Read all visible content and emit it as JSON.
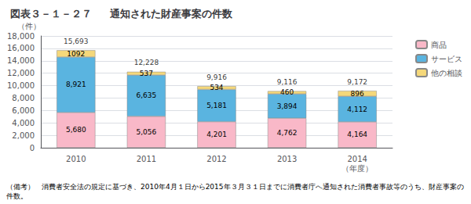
{
  "chart_data": {
    "type": "bar",
    "title": "図表３－１－２７",
    "subtitle": "通知された財産事案の件数",
    "ylabel": "（件）",
    "annotations": [
      "（備考）　消費者安全法の規定に基づき、2010年4月１日から2015年３月３１日までに消費者庁へ通知された消費者事故等のうち、財産事案の件数。"
    ],
    "categories": [
      "2010",
      "2011",
      "2012",
      "2013",
      "2014\n（年度）"
    ],
    "series": [
      {
        "name": "商品",
        "color": "#f9b8c8",
        "values": [
          5680,
          5056,
          4201,
          4762,
          4164
        ],
        "value_labels": [
          "5,680",
          "5,056",
          "4,201",
          "4,762",
          "4,164"
        ]
      },
      {
        "name": "サービス",
        "color": "#5ab4e0",
        "values": [
          8921,
          6635,
          5181,
          3894,
          4112
        ],
        "value_labels": [
          "8,921",
          "6,635",
          "5,181",
          "3,894",
          "4,112"
        ]
      },
      {
        "name": "他の相談",
        "color": "#f5d87a",
        "values": [
          1092,
          537,
          534,
          460,
          896
        ]
      }
    ],
    "totals": [
      15693,
      12228,
      9916,
      9116,
      9172
    ],
    "total_labels": [
      "15,693",
      "12,228",
      "9,916",
      "9,116",
      "9,172"
    ],
    "ylim": [
      0,
      18000
    ],
    "yticks": [
      0,
      {
        "value": 2000,
        "label": "2,000"
      },
      {
        "value": 4000,
        "label": "4,000"
      },
      {
        "value": 6000,
        "label": "6,000"
      },
      {
        "value": 8000,
        "label": "8,000"
      },
      {
        "value": 10000,
        "label": "10,000"
      },
      {
        "value": 12000,
        "label": "12,000"
      },
      {
        "value": 14000,
        "label": "14,000"
      },
      {
        "value": 16000,
        "label": "16,000"
      },
      {
        "value": 18000,
        "label": "18,000"
      }
    ],
    "grid": true,
    "legend": "upper right",
    "stacked": true,
    "data_labels": true
  }
}
